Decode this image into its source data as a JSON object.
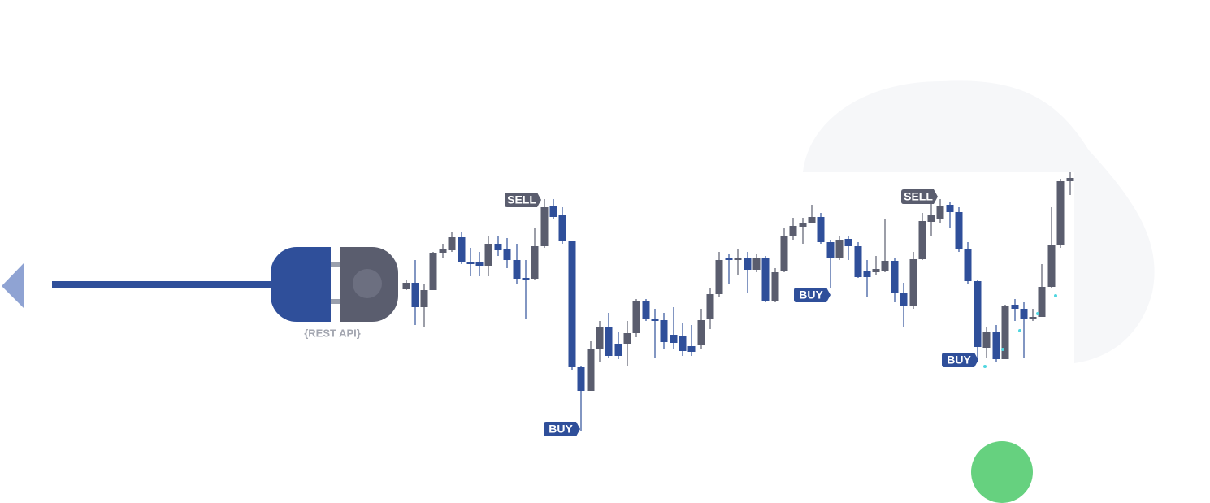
{
  "plug": {
    "label": "{REST API}"
  },
  "signals": [
    {
      "label": "SELL"
    },
    {
      "label": "BUY"
    },
    {
      "label": "BUY"
    },
    {
      "label": "SELL"
    },
    {
      "label": "BUY"
    }
  ]
}
